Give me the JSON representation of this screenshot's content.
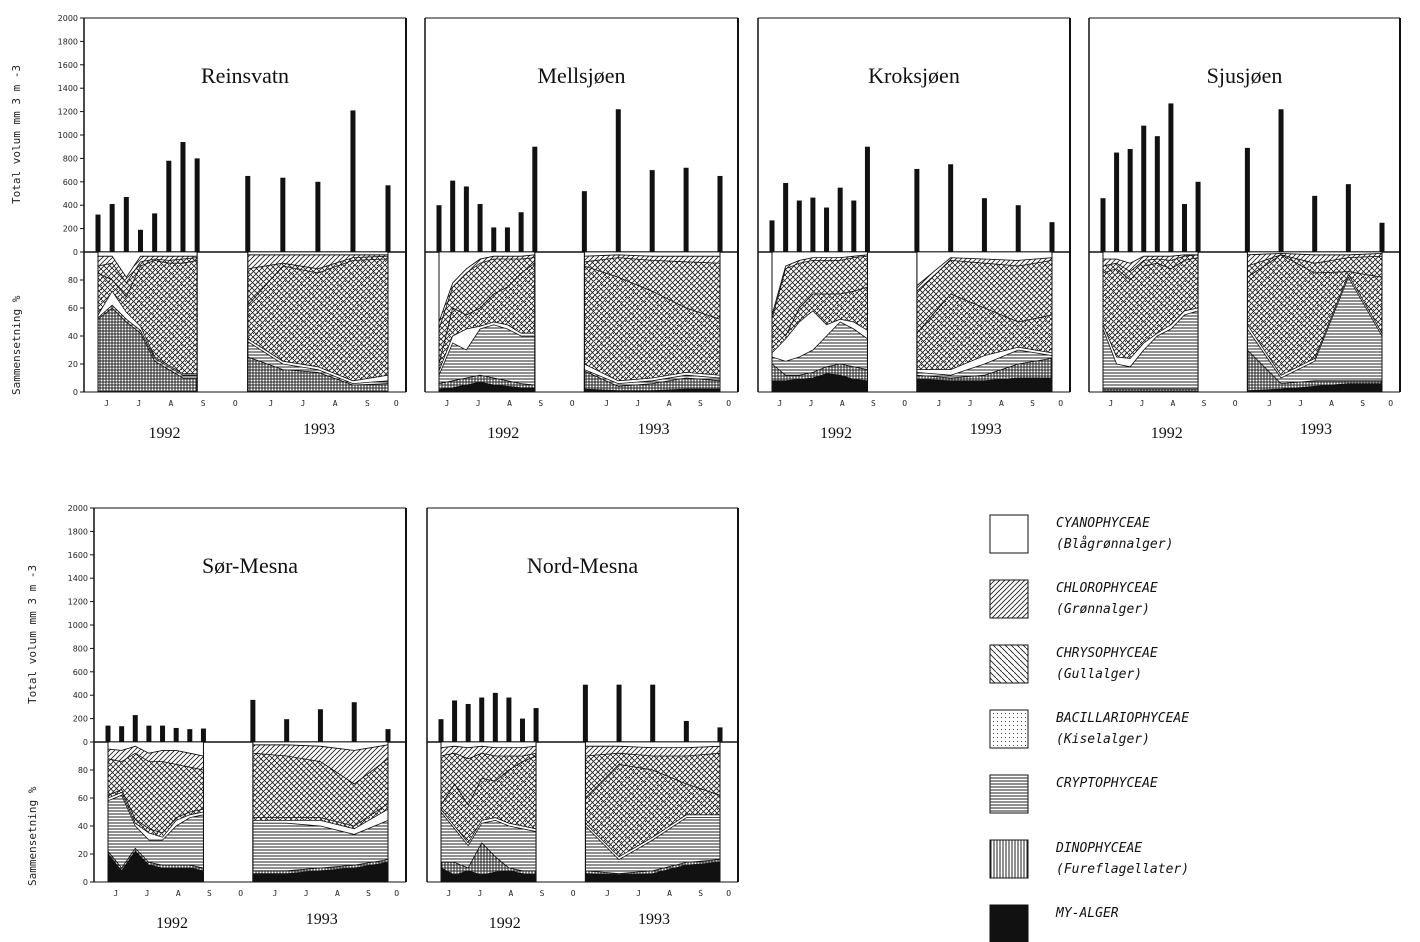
{
  "y_axis_labels": {
    "total": "Total volum mm 3 m -3",
    "composition": "Sammensetning %"
  },
  "total_ticks": [
    "0",
    "200",
    "400",
    "600",
    "800",
    "1000",
    "1200",
    "1400",
    "1600",
    "1800",
    "2000"
  ],
  "percent_ticks": [
    "0",
    "20",
    "40",
    "60",
    "80"
  ],
  "months": [
    "J",
    "J",
    "A",
    "S",
    "O"
  ],
  "legend": [
    {
      "key": "cyan",
      "name": "CYANOPHYCEAE",
      "sub": "(Blågrønnalger)",
      "pattern": "none"
    },
    {
      "key": "chlo",
      "name": "CHLOROPHYCEAE",
      "sub": "(Grønnalger)",
      "pattern": "diag-dense"
    },
    {
      "key": "chry",
      "name": "CHRYSOPHYCEAE",
      "sub": "(Gullalger)",
      "pattern": "diag-back"
    },
    {
      "key": "baci",
      "name": "BACILLARIOPHYCEAE",
      "sub": "(Kiselalger)",
      "pattern": "dots"
    },
    {
      "key": "cryp",
      "name": "CRYPTOPHYCEAE",
      "sub": "",
      "pattern": "horizontal"
    },
    {
      "key": "dino",
      "name": "DINOPHYCEAE",
      "sub": "(Fureflagellater)",
      "pattern": "vertical"
    },
    {
      "key": "my",
      "name": "MY-ALGER",
      "sub": "",
      "pattern": "solid"
    }
  ],
  "chart_data": [
    {
      "type": "bar+area",
      "title": "Reinsvatn",
      "years": [
        "1992",
        "1993"
      ],
      "ylim": [
        0,
        2000
      ],
      "total_1992": [
        320,
        410,
        470,
        190,
        330,
        780,
        940,
        800
      ],
      "total_1993": [
        650,
        635,
        600,
        1210,
        570
      ],
      "comp_1992": {
        "my": [
          0,
          0,
          0,
          0,
          0,
          0,
          0,
          0
        ],
        "dino": [
          52,
          60,
          50,
          42,
          22,
          16,
          10,
          10
        ],
        "cryp": [
          53,
          62,
          52,
          44,
          24,
          18,
          12,
          12
        ],
        "cyan": [
          55,
          72,
          57,
          47,
          25,
          19,
          13,
          13
        ],
        "baci": [
          85,
          80,
          68,
          90,
          94,
          92,
          92,
          94
        ],
        "chry": [
          90,
          92,
          78,
          93,
          95,
          94,
          95,
          96
        ],
        "chlo": [
          97,
          97,
          82,
          97,
          97,
          97,
          97,
          97
        ]
      },
      "comp_1993": {
        "my": [
          0,
          0,
          0,
          0,
          0
        ],
        "dino": [
          25,
          16,
          14,
          5,
          6
        ],
        "cryp": [
          36,
          20,
          16,
          6,
          8
        ],
        "cyan": [
          38,
          22,
          18,
          8,
          12
        ],
        "baci": [
          62,
          90,
          85,
          94,
          95
        ],
        "chry": [
          88,
          92,
          88,
          96,
          97
        ],
        "chlo": [
          98,
          98,
          98,
          98,
          98
        ]
      }
    },
    {
      "type": "bar+area",
      "title": "Mellsjøen",
      "years": [
        "1992",
        "1993"
      ],
      "ylim": [
        0,
        2000
      ],
      "total_1992": [
        400,
        610,
        560,
        410,
        210,
        210,
        340,
        900
      ],
      "total_1993": [
        520,
        1220,
        700,
        720,
        650
      ],
      "comp_1992": {
        "my": [
          2,
          3,
          5,
          7,
          5,
          4,
          3,
          3
        ],
        "dino": [
          6,
          8,
          10,
          12,
          10,
          8,
          6,
          5
        ],
        "cryp": [
          12,
          35,
          30,
          45,
          48,
          45,
          40,
          40
        ],
        "cyan": [
          15,
          40,
          45,
          47,
          50,
          48,
          42,
          42
        ],
        "baci": [
          20,
          60,
          55,
          60,
          70,
          75,
          85,
          92
        ],
        "chry": [
          45,
          75,
          85,
          92,
          95,
          95,
          95,
          96
        ],
        "chlo": [
          50,
          78,
          88,
          95,
          97,
          97,
          97,
          98
        ]
      },
      "comp_1993": {
        "my": [
          2,
          1,
          1,
          2,
          2
        ],
        "dino": [
          15,
          4,
          6,
          10,
          8
        ],
        "cryp": [
          16,
          6,
          8,
          12,
          10
        ],
        "cyan": [
          20,
          8,
          10,
          14,
          12
        ],
        "baci": [
          90,
          82,
          72,
          60,
          52
        ],
        "chry": [
          93,
          96,
          94,
          93,
          92
        ],
        "chlo": [
          97,
          98,
          97,
          97,
          97
        ]
      }
    },
    {
      "type": "bar+area",
      "title": "Kroksjøen",
      "years": [
        "1992",
        "1993"
      ],
      "ylim": [
        0,
        2000
      ],
      "total_1992": [
        270,
        590,
        440,
        465,
        380,
        550,
        440,
        900
      ],
      "total_1993": [
        710,
        750,
        460,
        400,
        255
      ],
      "comp_1992": {
        "my": [
          8,
          8,
          9,
          10,
          13,
          12,
          9,
          8
        ],
        "dino": [
          20,
          12,
          12,
          14,
          18,
          20,
          18,
          16
        ],
        "cryp": [
          25,
          22,
          25,
          30,
          40,
          50,
          45,
          38
        ],
        "cyan": [
          28,
          38,
          50,
          58,
          48,
          52,
          50,
          44
        ],
        "baci": [
          50,
          40,
          60,
          70,
          70,
          70,
          72,
          75
        ],
        "chry": [
          52,
          88,
          92,
          94,
          94,
          94,
          96,
          97
        ],
        "chlo": [
          55,
          90,
          94,
          96,
          96,
          96,
          97,
          98
        ]
      },
      "comp_1993": {
        "my": [
          9,
          8,
          8,
          10,
          10
        ],
        "dino": [
          12,
          10,
          12,
          20,
          24
        ],
        "cryp": [
          14,
          12,
          20,
          30,
          26
        ],
        "cyan": [
          16,
          16,
          26,
          32,
          28
        ],
        "baci": [
          42,
          70,
          60,
          50,
          55
        ],
        "chry": [
          72,
          94,
          92,
          90,
          94
        ],
        "chlo": [
          76,
          96,
          95,
          94,
          96
        ]
      }
    },
    {
      "type": "bar+area",
      "title": "Sjusjøen",
      "years": [
        "1992",
        "1993"
      ],
      "ylim": [
        0,
        2000
      ],
      "total_1992": [
        460,
        850,
        880,
        1080,
        990,
        1270,
        410,
        600
      ],
      "total_1993": [
        890,
        1220,
        480,
        580,
        250
      ],
      "comp_1992": {
        "my": [
          0,
          0,
          0,
          0,
          0,
          0,
          0,
          0
        ],
        "dino": [
          2,
          2,
          2,
          2,
          2,
          2,
          2,
          2
        ],
        "cryp": [
          45,
          20,
          18,
          30,
          40,
          45,
          55,
          58
        ],
        "cyan": [
          48,
          25,
          24,
          35,
          42,
          48,
          58,
          60
        ],
        "baci": [
          85,
          88,
          80,
          90,
          92,
          88,
          94,
          96
        ],
        "chry": [
          90,
          92,
          86,
          94,
          95,
          94,
          97,
          98
        ],
        "chlo": [
          95,
          95,
          92,
          97,
          97,
          97,
          98,
          98
        ]
      },
      "comp_1993": {
        "my": [
          1,
          2,
          4,
          6,
          6
        ],
        "dino": [
          30,
          6,
          8,
          8,
          8
        ],
        "cryp": [
          45,
          10,
          22,
          82,
          40
        ],
        "cyan": [
          48,
          12,
          24,
          84,
          42
        ],
        "baci": [
          82,
          98,
          85,
          86,
          82
        ],
        "chry": [
          90,
          98,
          92,
          96,
          97
        ],
        "chlo": [
          98,
          99,
          98,
          98,
          99
        ]
      }
    },
    {
      "type": "bar+area",
      "title": "Sør-Mesna",
      "years": [
        "1992",
        "1993"
      ],
      "ylim": [
        0,
        2000
      ],
      "total_1992": [
        140,
        135,
        230,
        140,
        140,
        120,
        110,
        115
      ],
      "total_1993": [
        360,
        195,
        280,
        340,
        110
      ],
      "comp_1992": {
        "my": [
          20,
          8,
          22,
          12,
          10,
          10,
          10,
          8
        ],
        "dino": [
          22,
          10,
          24,
          14,
          12,
          12,
          12,
          10
        ],
        "cryp": [
          58,
          62,
          40,
          30,
          30,
          40,
          46,
          48
        ],
        "cyan": [
          60,
          64,
          42,
          35,
          32,
          44,
          48,
          50
        ],
        "baci": [
          62,
          66,
          45,
          38,
          35,
          46,
          50,
          52
        ],
        "chry": [
          88,
          86,
          92,
          86,
          86,
          84,
          82,
          80
        ],
        "chlo": [
          95,
          94,
          97,
          92,
          94,
          94,
          92,
          90
        ],
        "extra": 0
      },
      "comp_1993": {
        "my": [
          6,
          6,
          8,
          10,
          14
        ],
        "dino": [
          8,
          8,
          10,
          12,
          16
        ],
        "cryp": [
          42,
          42,
          40,
          34,
          44
        ],
        "cyan": [
          44,
          44,
          44,
          38,
          52
        ],
        "baci": [
          46,
          46,
          46,
          40,
          56
        ],
        "chry": [
          92,
          90,
          86,
          70,
          88
        ],
        "chlo": [
          98,
          98,
          97,
          94,
          98
        ]
      }
    },
    {
      "type": "bar+area",
      "title": "Nord-Mesna",
      "years": [
        "1992",
        "1993"
      ],
      "ylim": [
        0,
        2000
      ],
      "total_1992": [
        195,
        355,
        325,
        380,
        420,
        380,
        200,
        290
      ],
      "total_1993": [
        490,
        490,
        490,
        180,
        125
      ],
      "comp_1992": {
        "my": [
          10,
          5,
          8,
          5,
          7,
          8,
          6,
          5
        ],
        "dino": [
          14,
          14,
          10,
          28,
          18,
          10,
          8,
          8
        ],
        "cryp": [
          50,
          38,
          26,
          42,
          44,
          40,
          38,
          36
        ],
        "cyan": [
          52,
          40,
          28,
          44,
          46,
          42,
          40,
          38
        ],
        "baci": [
          55,
          70,
          55,
          74,
          72,
          80,
          86,
          90
        ],
        "chry": [
          90,
          92,
          88,
          92,
          90,
          90,
          90,
          92
        ],
        "chlo": [
          96,
          97,
          96,
          97,
          96,
          96,
          96,
          97
        ]
      },
      "comp_1993": {
        "my": [
          6,
          5,
          6,
          12,
          14
        ],
        "dino": [
          8,
          6,
          8,
          14,
          16
        ],
        "cryp": [
          40,
          16,
          30,
          46,
          46
        ],
        "cyan": [
          42,
          18,
          32,
          48,
          48
        ],
        "baci": [
          60,
          84,
          80,
          70,
          62
        ],
        "chry": [
          90,
          92,
          90,
          90,
          92
        ],
        "chlo": [
          97,
          97,
          96,
          96,
          97
        ]
      }
    }
  ]
}
